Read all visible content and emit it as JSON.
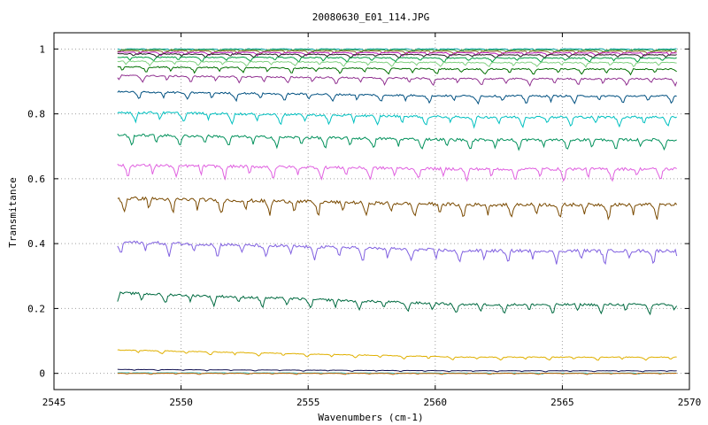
{
  "chart_data": {
    "type": "line",
    "title": "20080630_E01_114.JPG",
    "xlabel": "Wavenumbers (cm-1)",
    "ylabel": "Transmitance",
    "xlim": [
      2545,
      2570
    ],
    "ylim": [
      -0.05,
      1.05
    ],
    "x_ticks": [
      2545,
      2550,
      2555,
      2560,
      2565,
      2570
    ],
    "y_ticks": [
      0,
      0.2,
      0.4,
      0.6,
      0.8,
      1
    ],
    "x_tick_labels": [
      "2545",
      "2550",
      "2555",
      "2560",
      "2565",
      "2570"
    ],
    "y_tick_labels": [
      "0",
      "0.2",
      "0.4",
      "0.6",
      "0.8",
      "1"
    ],
    "x_range": [
      2547.5,
      2569.5
    ],
    "grid": true,
    "legend": "none",
    "series": [
      {
        "start": 1.0,
        "end": 1.0,
        "color": "#00a0a0",
        "noise": 0.002
      },
      {
        "start": 0.998,
        "end": 0.997,
        "color": "#40a040",
        "noise": 0.002
      },
      {
        "start": 0.995,
        "end": 0.993,
        "color": "#8a6a2a",
        "noise": 0.003
      },
      {
        "start": 0.99,
        "end": 0.988,
        "color": "#c020c0",
        "noise": 0.003
      },
      {
        "start": 0.985,
        "end": 0.982,
        "color": "#202020",
        "noise": 0.003
      },
      {
        "start": 0.975,
        "end": 0.972,
        "color": "#00a040",
        "noise": 0.004
      },
      {
        "start": 0.962,
        "end": 0.958,
        "color": "#80d080",
        "noise": 0.004
      },
      {
        "start": 0.945,
        "end": 0.938,
        "color": "#007000",
        "noise": 0.005
      },
      {
        "start": 0.918,
        "end": 0.908,
        "color": "#903090",
        "noise": 0.006
      },
      {
        "start": 0.868,
        "end": 0.855,
        "color": "#005080",
        "noise": 0.007
      },
      {
        "start": 0.805,
        "end": 0.79,
        "color": "#00c0c0",
        "noise": 0.009
      },
      {
        "start": 0.735,
        "end": 0.72,
        "color": "#00905a",
        "noise": 0.01
      },
      {
        "start": 0.642,
        "end": 0.63,
        "color": "#e060e0",
        "noise": 0.011
      },
      {
        "start": 0.54,
        "end": 0.52,
        "color": "#7a4a00",
        "noise": 0.013
      },
      {
        "start": 0.405,
        "end": 0.378,
        "color": "#8060e0",
        "noise": 0.012
      },
      {
        "start": 0.248,
        "end": 0.212,
        "color": "#006a40",
        "noise": 0.009
      },
      {
        "start": 0.072,
        "end": 0.05,
        "color": "#e0b000",
        "noise": 0.003
      },
      {
        "start": 0.012,
        "end": 0.008,
        "color": "#101050",
        "noise": 0.001
      },
      {
        "start": 0.002,
        "end": 0.001,
        "color": "#40c0c0",
        "noise": 0.001
      },
      {
        "start": 0.0,
        "end": 0.0,
        "color": "#c06000",
        "noise": 0.001
      }
    ]
  }
}
